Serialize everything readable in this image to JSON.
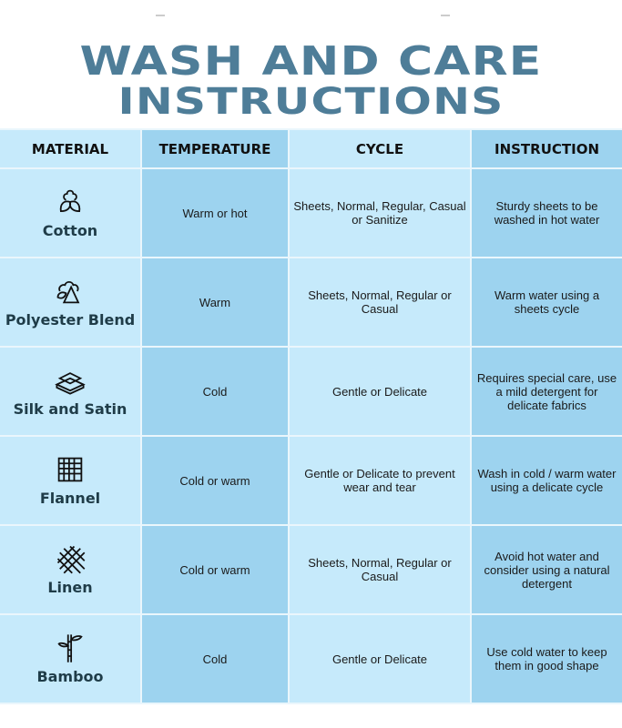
{
  "title": {
    "line1": "WASH AND CARE",
    "line2": "INSTRUCTIONS"
  },
  "colors": {
    "title": "#4e7d98",
    "light_cell": "#c6eafb",
    "dark_cell": "#9dd3ef"
  },
  "headers": [
    "MATERIAL",
    "TEMPERATURE",
    "CYCLE",
    "INSTRUCTION"
  ],
  "rows": [
    {
      "material": "Cotton",
      "icon": "cotton-icon",
      "temperature": "Warm or hot",
      "cycle": "Sheets, Normal, Regular, Casual or Sanitize",
      "instruction": "Sturdy sheets to be washed in hot water"
    },
    {
      "material": "Polyester Blend",
      "icon": "polyester-icon",
      "temperature": "Warm",
      "cycle": "Sheets, Normal, Regular or Casual",
      "instruction": "Warm water using a sheets cycle"
    },
    {
      "material": "Silk and Satin",
      "icon": "folded-fabric-icon",
      "temperature": "Cold",
      "cycle": "Gentle or Delicate",
      "instruction": "Requires special care, use a mild detergent for delicate fabrics"
    },
    {
      "material": "Flannel",
      "icon": "grid-fabric-icon",
      "temperature": "Cold or warm",
      "cycle": "Gentle or Delicate to prevent wear and tear",
      "instruction": "Wash in cold / warm water using a delicate cycle"
    },
    {
      "material": "Linen",
      "icon": "woven-fabric-icon",
      "temperature": "Cold or warm",
      "cycle": "Sheets, Normal, Regular or Casual",
      "instruction": "Avoid hot water and consider using a natural detergent"
    },
    {
      "material": "Bamboo",
      "icon": "bamboo-icon",
      "temperature": "Cold",
      "cycle": "Gentle or Delicate",
      "instruction": "Use cold water to keep them in good shape"
    }
  ]
}
